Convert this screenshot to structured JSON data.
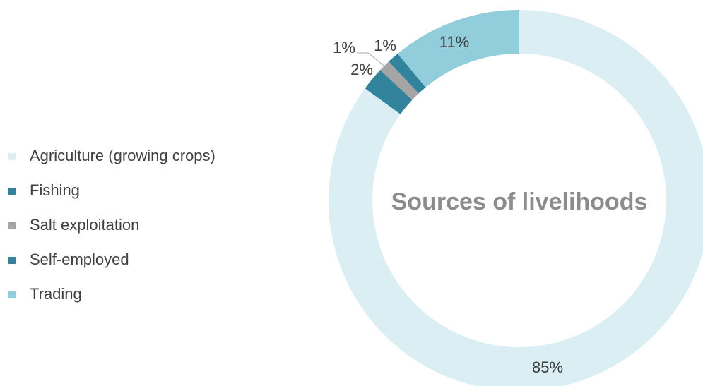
{
  "chart_data": {
    "type": "donut",
    "title": "Sources of livelihoods",
    "categories": [
      "Agriculture (growing crops)",
      "Fishing",
      "Salt exploitation",
      "Self-employed",
      "Trading"
    ],
    "values": [
      85,
      2,
      1,
      1,
      11
    ],
    "value_labels": [
      "85%",
      "2%",
      "1%",
      "1%",
      "11%"
    ],
    "colors": [
      "#daeef3",
      "#31849b",
      "#a5a5a5",
      "#31849b",
      "#92cddc"
    ],
    "legend": "left"
  }
}
